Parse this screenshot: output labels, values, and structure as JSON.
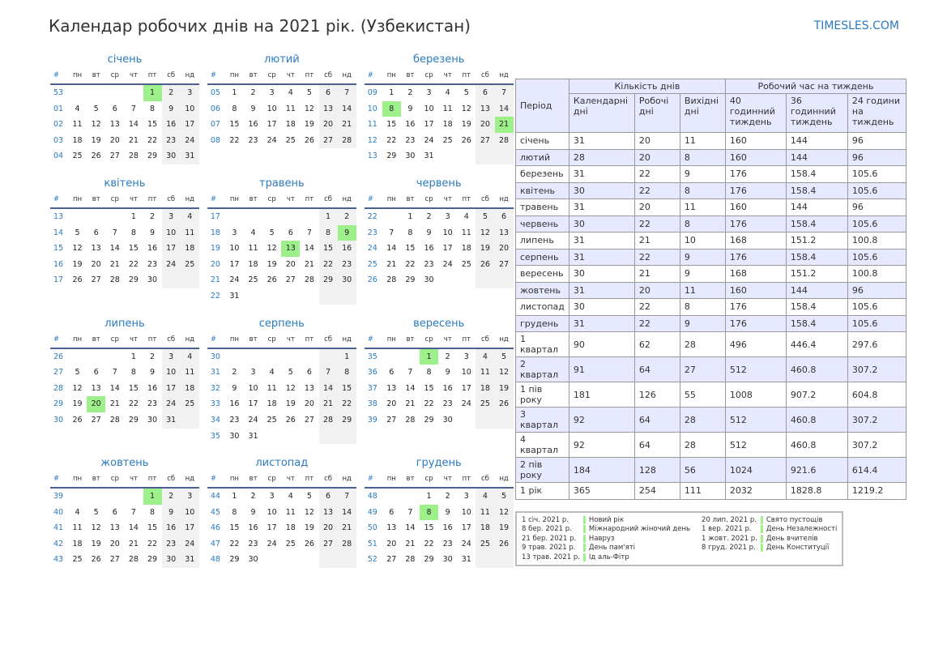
{
  "title": "Календар робочих днів на 2021 рік. (Узбекистан)",
  "site": "TIMESLES.COM",
  "colors": {
    "accent": "#2a7ac0",
    "holiday": "#9ef08a",
    "weekend": "#f1f1f1",
    "header_bg": "#e6e9ff"
  },
  "weekday_headers": [
    "#",
    "пн",
    "вт",
    "ср",
    "чт",
    "пт",
    "сб",
    "нд"
  ],
  "months": [
    {
      "name": "січень",
      "start": 4,
      "days": 31,
      "weeks": [
        "53",
        "01",
        "02",
        "03",
        "04"
      ],
      "holidays": [
        1
      ]
    },
    {
      "name": "лютий",
      "start": 0,
      "days": 28,
      "weeks": [
        "05",
        "06",
        "07",
        "08"
      ],
      "holidays": []
    },
    {
      "name": "березень",
      "start": 0,
      "days": 31,
      "weeks": [
        "09",
        "10",
        "11",
        "12",
        "13"
      ],
      "holidays": [
        8,
        21
      ]
    },
    {
      "name": "квітень",
      "start": 3,
      "days": 30,
      "weeks": [
        "13",
        "14",
        "15",
        "16",
        "17"
      ],
      "holidays": []
    },
    {
      "name": "травень",
      "start": 5,
      "days": 31,
      "weeks": [
        "17",
        "18",
        "19",
        "20",
        "21",
        "22"
      ],
      "holidays": [
        9,
        13
      ]
    },
    {
      "name": "червень",
      "start": 1,
      "days": 30,
      "weeks": [
        "22",
        "23",
        "24",
        "25",
        "26"
      ],
      "holidays": []
    },
    {
      "name": "липень",
      "start": 3,
      "days": 31,
      "weeks": [
        "26",
        "27",
        "28",
        "29",
        "30"
      ],
      "holidays": [
        20
      ]
    },
    {
      "name": "серпень",
      "start": 6,
      "days": 31,
      "weeks": [
        "30",
        "31",
        "32",
        "33",
        "34",
        "35"
      ],
      "holidays": []
    },
    {
      "name": "вересень",
      "start": 2,
      "days": 30,
      "weeks": [
        "35",
        "36",
        "37",
        "38",
        "39"
      ],
      "holidays": [
        1
      ]
    },
    {
      "name": "жовтень",
      "start": 4,
      "days": 31,
      "weeks": [
        "39",
        "40",
        "41",
        "42",
        "43"
      ],
      "holidays": [
        1
      ]
    },
    {
      "name": "листопад",
      "start": 0,
      "days": 30,
      "weeks": [
        "44",
        "45",
        "46",
        "47",
        "48"
      ],
      "holidays": []
    },
    {
      "name": "грудень",
      "start": 2,
      "days": 31,
      "weeks": [
        "48",
        "49",
        "50",
        "51",
        "52"
      ],
      "holidays": [
        8
      ]
    }
  ],
  "table": {
    "period": "Період",
    "days_group": "Кількість днів",
    "hours_group": "Робочий час на тиждень",
    "cols": [
      "Календарні дні",
      "Робочі дні",
      "Вихідні дні",
      "40 годинний тиждень",
      "36 годинний тиждень",
      "24 години на тиждень"
    ],
    "rows": [
      [
        "січень",
        "31",
        "20",
        "11",
        "160",
        "144",
        "96"
      ],
      [
        "лютий",
        "28",
        "20",
        "8",
        "160",
        "144",
        "96"
      ],
      [
        "березень",
        "31",
        "22",
        "9",
        "176",
        "158.4",
        "105.6"
      ],
      [
        "квітень",
        "30",
        "22",
        "8",
        "176",
        "158.4",
        "105.6"
      ],
      [
        "травень",
        "31",
        "20",
        "11",
        "160",
        "144",
        "96"
      ],
      [
        "червень",
        "30",
        "22",
        "8",
        "176",
        "158.4",
        "105.6"
      ],
      [
        "липень",
        "31",
        "21",
        "10",
        "168",
        "151.2",
        "100.8"
      ],
      [
        "серпень",
        "31",
        "22",
        "9",
        "176",
        "158.4",
        "105.6"
      ],
      [
        "вересень",
        "30",
        "21",
        "9",
        "168",
        "151.2",
        "100.8"
      ],
      [
        "жовтень",
        "31",
        "20",
        "11",
        "160",
        "144",
        "96"
      ],
      [
        "листопад",
        "30",
        "22",
        "8",
        "176",
        "158.4",
        "105.6"
      ],
      [
        "грудень",
        "31",
        "22",
        "9",
        "176",
        "158.4",
        "105.6"
      ],
      [
        "1 квартал",
        "90",
        "62",
        "28",
        "496",
        "446.4",
        "297.6"
      ],
      [
        "2 квартал",
        "91",
        "64",
        "27",
        "512",
        "460.8",
        "307.2"
      ],
      [
        "1 пів року",
        "181",
        "126",
        "55",
        "1008",
        "907.2",
        "604.8"
      ],
      [
        "3 квартал",
        "92",
        "64",
        "28",
        "512",
        "460.8",
        "307.2"
      ],
      [
        "4 квартал",
        "92",
        "64",
        "28",
        "512",
        "460.8",
        "307.2"
      ],
      [
        "2 пів року",
        "184",
        "128",
        "56",
        "1024",
        "921.6",
        "614.4"
      ],
      [
        "1 рік",
        "365",
        "254",
        "111",
        "2032",
        "1828.8",
        "1219.2"
      ]
    ]
  },
  "legend": [
    {
      "date": "1 січ. 2021 р.",
      "name": "Новий рік"
    },
    {
      "date": "8 бер. 2021 р.",
      "name": "Міжнародний жіночий день"
    },
    {
      "date": "21 бер. 2021 р.",
      "name": "Навруз"
    },
    {
      "date": "9 трав. 2021 р.",
      "name": "День пам'яті"
    },
    {
      "date": "13 трав. 2021 р.",
      "name": "Ід аль-Фітр"
    },
    {
      "date": "20 лип. 2021 р.",
      "name": "Свято пустощів"
    },
    {
      "date": "1 вер. 2021 р.",
      "name": "День Незалежності"
    },
    {
      "date": "1 жовт. 2021 р.",
      "name": "День вчителів"
    },
    {
      "date": "8 груд. 2021 р.",
      "name": "День Конституції"
    }
  ]
}
